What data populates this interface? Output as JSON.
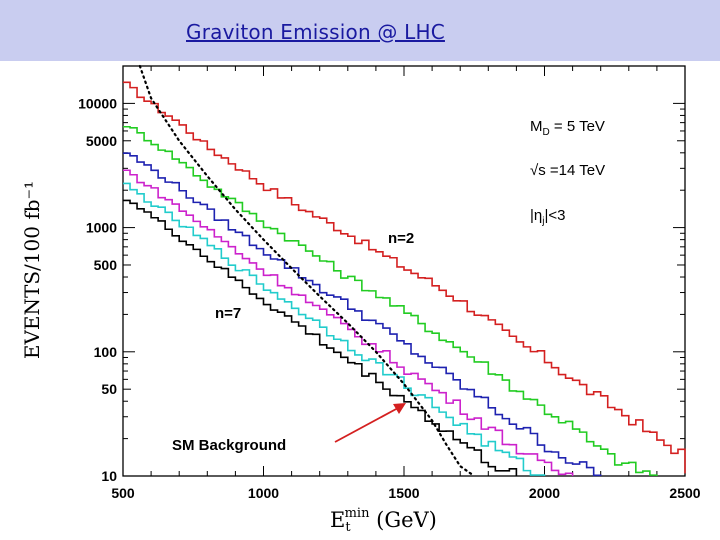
{
  "slide": {
    "title": "Graviton Emission @ LHC"
  },
  "chart_data": {
    "type": "line",
    "xlabel_main": "E",
    "xlabel_sub": "t",
    "xlabel_sup": "min",
    "xlabel_unit": "(GeV)",
    "ylabel": "EVENTS/100 fb⁻¹",
    "xlim": [
      500,
      2500
    ],
    "ylim": [
      10,
      20000
    ],
    "yscale": "log",
    "x_ticks": [
      "500",
      "1000",
      "1500",
      "2000",
      "2500"
    ],
    "y_ticks": [
      "10",
      "50",
      "100",
      "500",
      "1000",
      "5000",
      "10000"
    ],
    "annotations": {
      "md": "M",
      "md_sub": "D",
      "md_val": " = 5 TeV",
      "sqrts": "√s =14 TeV",
      "eta": "|η",
      "eta_sub": "j",
      "eta_val": "|<3",
      "n2": "n=2",
      "n7": "n=7",
      "sm": "SM Background"
    },
    "series": [
      {
        "color": "#d42020",
        "points": [
          [
            500,
            15000
          ],
          [
            600,
            10000
          ],
          [
            700,
            7000
          ],
          [
            800,
            4500
          ],
          [
            900,
            3200
          ],
          [
            1000,
            2200
          ],
          [
            1100,
            1600
          ],
          [
            1200,
            1200
          ],
          [
            1300,
            900
          ],
          [
            1400,
            650
          ],
          [
            1500,
            480
          ],
          [
            1600,
            360
          ],
          [
            1700,
            260
          ],
          [
            1800,
            180
          ],
          [
            1900,
            120
          ],
          [
            2000,
            90
          ],
          [
            2100,
            60
          ],
          [
            2200,
            42
          ],
          [
            2300,
            30
          ],
          [
            2400,
            20
          ],
          [
            2500,
            15
          ]
        ]
      },
      {
        "color": "#22cc22",
        "points": [
          [
            500,
            7000
          ],
          [
            600,
            5000
          ],
          [
            700,
            3500
          ],
          [
            800,
            2300
          ],
          [
            900,
            1600
          ],
          [
            1000,
            1100
          ],
          [
            1100,
            800
          ],
          [
            1200,
            570
          ],
          [
            1300,
            400
          ],
          [
            1400,
            300
          ],
          [
            1500,
            210
          ],
          [
            1600,
            150
          ],
          [
            1700,
            105
          ],
          [
            1800,
            75
          ],
          [
            1900,
            50
          ],
          [
            2000,
            35
          ],
          [
            2100,
            25
          ],
          [
            2200,
            16
          ],
          [
            2300,
            12
          ],
          [
            2400,
            10
          ]
        ]
      },
      {
        "color": "#1e22b0",
        "points": [
          [
            500,
            4200
          ],
          [
            600,
            3000
          ],
          [
            700,
            2100
          ],
          [
            800,
            1400
          ],
          [
            900,
            950
          ],
          [
            1000,
            660
          ],
          [
            1100,
            470
          ],
          [
            1200,
            330
          ],
          [
            1300,
            240
          ],
          [
            1400,
            170
          ],
          [
            1500,
            115
          ],
          [
            1600,
            80
          ],
          [
            1700,
            55
          ],
          [
            1800,
            38
          ],
          [
            1900,
            26
          ],
          [
            2000,
            18
          ],
          [
            2100,
            13
          ],
          [
            2200,
            10
          ]
        ]
      },
      {
        "color": "#cc22cc",
        "points": [
          [
            500,
            3000
          ],
          [
            600,
            2100
          ],
          [
            700,
            1450
          ],
          [
            800,
            980
          ],
          [
            900,
            660
          ],
          [
            1000,
            450
          ],
          [
            1100,
            320
          ],
          [
            1200,
            220
          ],
          [
            1300,
            155
          ],
          [
            1400,
            108
          ],
          [
            1500,
            75
          ],
          [
            1600,
            52
          ],
          [
            1700,
            36
          ],
          [
            1800,
            25
          ],
          [
            1900,
            17
          ],
          [
            2000,
            12
          ],
          [
            2100,
            10
          ]
        ]
      },
      {
        "color": "#22cccc",
        "points": [
          [
            500,
            2300
          ],
          [
            600,
            1600
          ],
          [
            700,
            1100
          ],
          [
            800,
            750
          ],
          [
            900,
            500
          ],
          [
            1000,
            340
          ],
          [
            1100,
            240
          ],
          [
            1200,
            165
          ],
          [
            1300,
            115
          ],
          [
            1400,
            80
          ],
          [
            1500,
            56
          ],
          [
            1600,
            38
          ],
          [
            1700,
            26
          ],
          [
            1800,
            18
          ],
          [
            1900,
            13
          ],
          [
            2000,
            10
          ]
        ]
      },
      {
        "color": "#000000",
        "points": [
          [
            500,
            1800
          ],
          [
            600,
            1250
          ],
          [
            700,
            850
          ],
          [
            800,
            570
          ],
          [
            900,
            380
          ],
          [
            1000,
            260
          ],
          [
            1100,
            180
          ],
          [
            1200,
            125
          ],
          [
            1300,
            86
          ],
          [
            1400,
            60
          ],
          [
            1500,
            42
          ],
          [
            1600,
            28
          ],
          [
            1700,
            19
          ],
          [
            1800,
            13
          ],
          [
            1900,
            10
          ]
        ]
      }
    ],
    "background": {
      "color": "#000000",
      "points": [
        [
          560,
          20000
        ],
        [
          600,
          11000
        ],
        [
          700,
          5000
        ],
        [
          800,
          2600
        ],
        [
          900,
          1400
        ],
        [
          1000,
          800
        ],
        [
          1100,
          470
        ],
        [
          1200,
          280
        ],
        [
          1300,
          170
        ],
        [
          1400,
          100
        ],
        [
          1500,
          55
        ],
        [
          1600,
          28
        ],
        [
          1650,
          18
        ],
        [
          1700,
          12
        ],
        [
          1750,
          10
        ]
      ]
    }
  }
}
